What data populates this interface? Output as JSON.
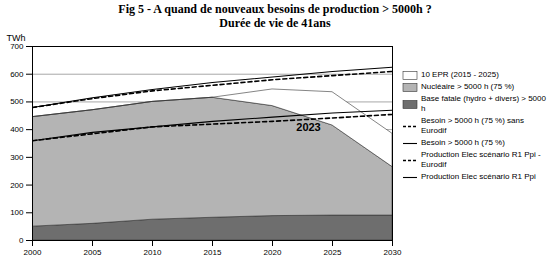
{
  "chart_data": {
    "type": "area",
    "title": "Fig 5 - A quand de nouveaux besoins de production  > 5000h ?",
    "subtitle": "Durée de vie de 41ans",
    "y_label": "TWh",
    "stacked": true,
    "grid": true,
    "legend": "right",
    "x": [
      2000,
      2005,
      2010,
      2015,
      2020,
      2025,
      2030
    ],
    "xlim": [
      2000,
      2030
    ],
    "xticks": [
      2000,
      2005,
      2010,
      2015,
      2020,
      2025,
      2030
    ],
    "ylim": [
      0,
      700
    ],
    "yticks": [
      0,
      100,
      200,
      300,
      400,
      500,
      600,
      700
    ],
    "series": [
      {
        "name": "Base fatale (hydro + divers) > 5000 h",
        "type": "area",
        "color": "#6e6e6e",
        "values": [
          50,
          60,
          75,
          82,
          88,
          90,
          90
        ]
      },
      {
        "name": "Nucléaire > 5000 h (75 %)",
        "type": "area",
        "color": "#b4b4b4",
        "values": [
          395,
          410,
          425,
          433,
          397,
          325,
          175
        ]
      },
      {
        "name": "10 EPR (2015 - 2025)",
        "type": "area",
        "color": "#ffffff",
        "values": [
          0,
          0,
          0,
          0,
          60,
          120,
          120
        ]
      },
      {
        "name": "Besoin > 5000 h (75 %) sans Eurodif",
        "type": "line",
        "line_style": "dashed",
        "color": "#000000",
        "values": [
          360,
          385,
          410,
          420,
          430,
          442,
          455
        ]
      },
      {
        "name": "Besoin > 5000 h (75 %)",
        "type": "line",
        "line_style": "solid",
        "color": "#000000",
        "values": [
          360,
          390,
          410,
          430,
          445,
          460,
          470
        ]
      },
      {
        "name": "Production Elec scénario R1 Ppi - Eurodif",
        "type": "line",
        "line_style": "dashed",
        "color": "#000000",
        "values": [
          480,
          512,
          540,
          560,
          580,
          595,
          610
        ]
      },
      {
        "name": "Production Elec scénario R1 Ppi",
        "type": "line",
        "line_style": "solid",
        "color": "#000000",
        "values": [
          480,
          515,
          545,
          570,
          590,
          610,
          625
        ]
      }
    ],
    "annotations": [
      {
        "text": "2023",
        "x": 2023,
        "y": 430
      }
    ]
  }
}
